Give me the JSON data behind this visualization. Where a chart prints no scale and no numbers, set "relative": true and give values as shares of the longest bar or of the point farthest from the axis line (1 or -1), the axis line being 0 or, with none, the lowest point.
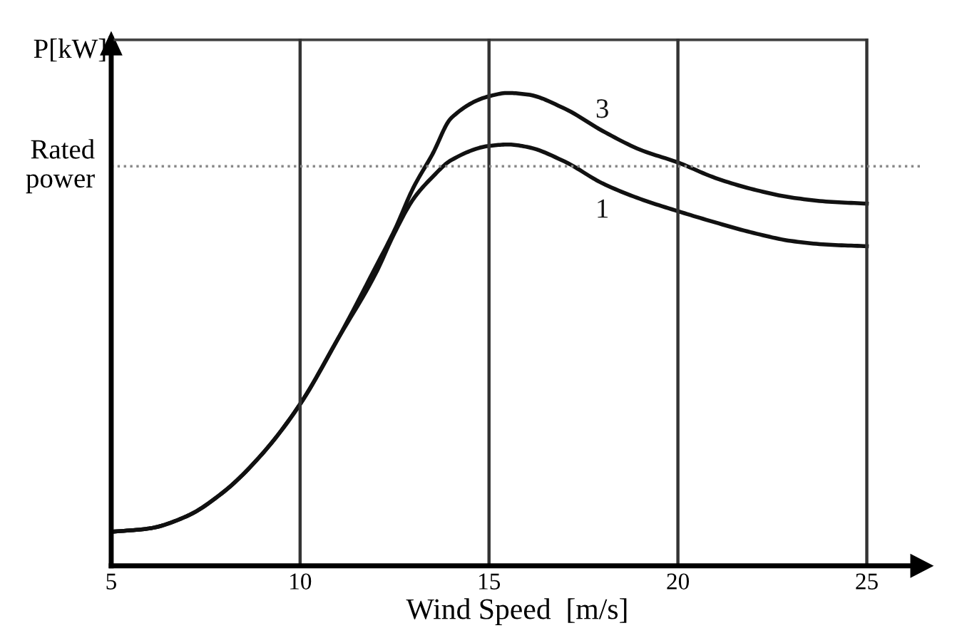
{
  "chart_data": {
    "type": "line",
    "relative": true,
    "xlabel": "Wind Speed  [m/s]",
    "ylabel": "P[kW]",
    "xlim": [
      5,
      26.5
    ],
    "xticks": [
      5,
      10,
      15,
      20,
      25
    ],
    "grid": "x",
    "tick_labels": "x",
    "legend": false,
    "marker": "none",
    "line_style": "solid",
    "ref_lines": [
      {
        "axis": "y",
        "value": 0.845,
        "label": "Rated power",
        "color": "#888888",
        "line_style": "dotted"
      }
    ],
    "series": [
      {
        "name": "3",
        "color": "#111111",
        "x": [
          5,
          6,
          7,
          8,
          9,
          10,
          11,
          12,
          12.5,
          13,
          13.5,
          14,
          15,
          15.5,
          16,
          17,
          18,
          19,
          20,
          21,
          22,
          23,
          24,
          25
        ],
        "values": [
          0.072,
          0.079,
          0.105,
          0.158,
          0.237,
          0.342,
          0.48,
          0.632,
          0.71,
          0.8,
          0.87,
          0.947,
          0.993,
          1.0,
          0.997,
          0.967,
          0.92,
          0.88,
          0.853,
          0.82,
          0.796,
          0.779,
          0.77,
          0.766
        ]
      },
      {
        "name": "1",
        "color": "#111111",
        "x": [
          5,
          6,
          7,
          8,
          9,
          10,
          11,
          12,
          12.5,
          13,
          13.5,
          14,
          15,
          15.5,
          16,
          17,
          18,
          19,
          20,
          21,
          22,
          23,
          24,
          25
        ],
        "values": [
          0.072,
          0.079,
          0.105,
          0.158,
          0.237,
          0.342,
          0.48,
          0.618,
          0.704,
          0.776,
          0.822,
          0.858,
          0.888,
          0.891,
          0.886,
          0.855,
          0.809,
          0.776,
          0.75,
          0.726,
          0.704,
          0.687,
          0.679,
          0.676
        ]
      }
    ]
  }
}
